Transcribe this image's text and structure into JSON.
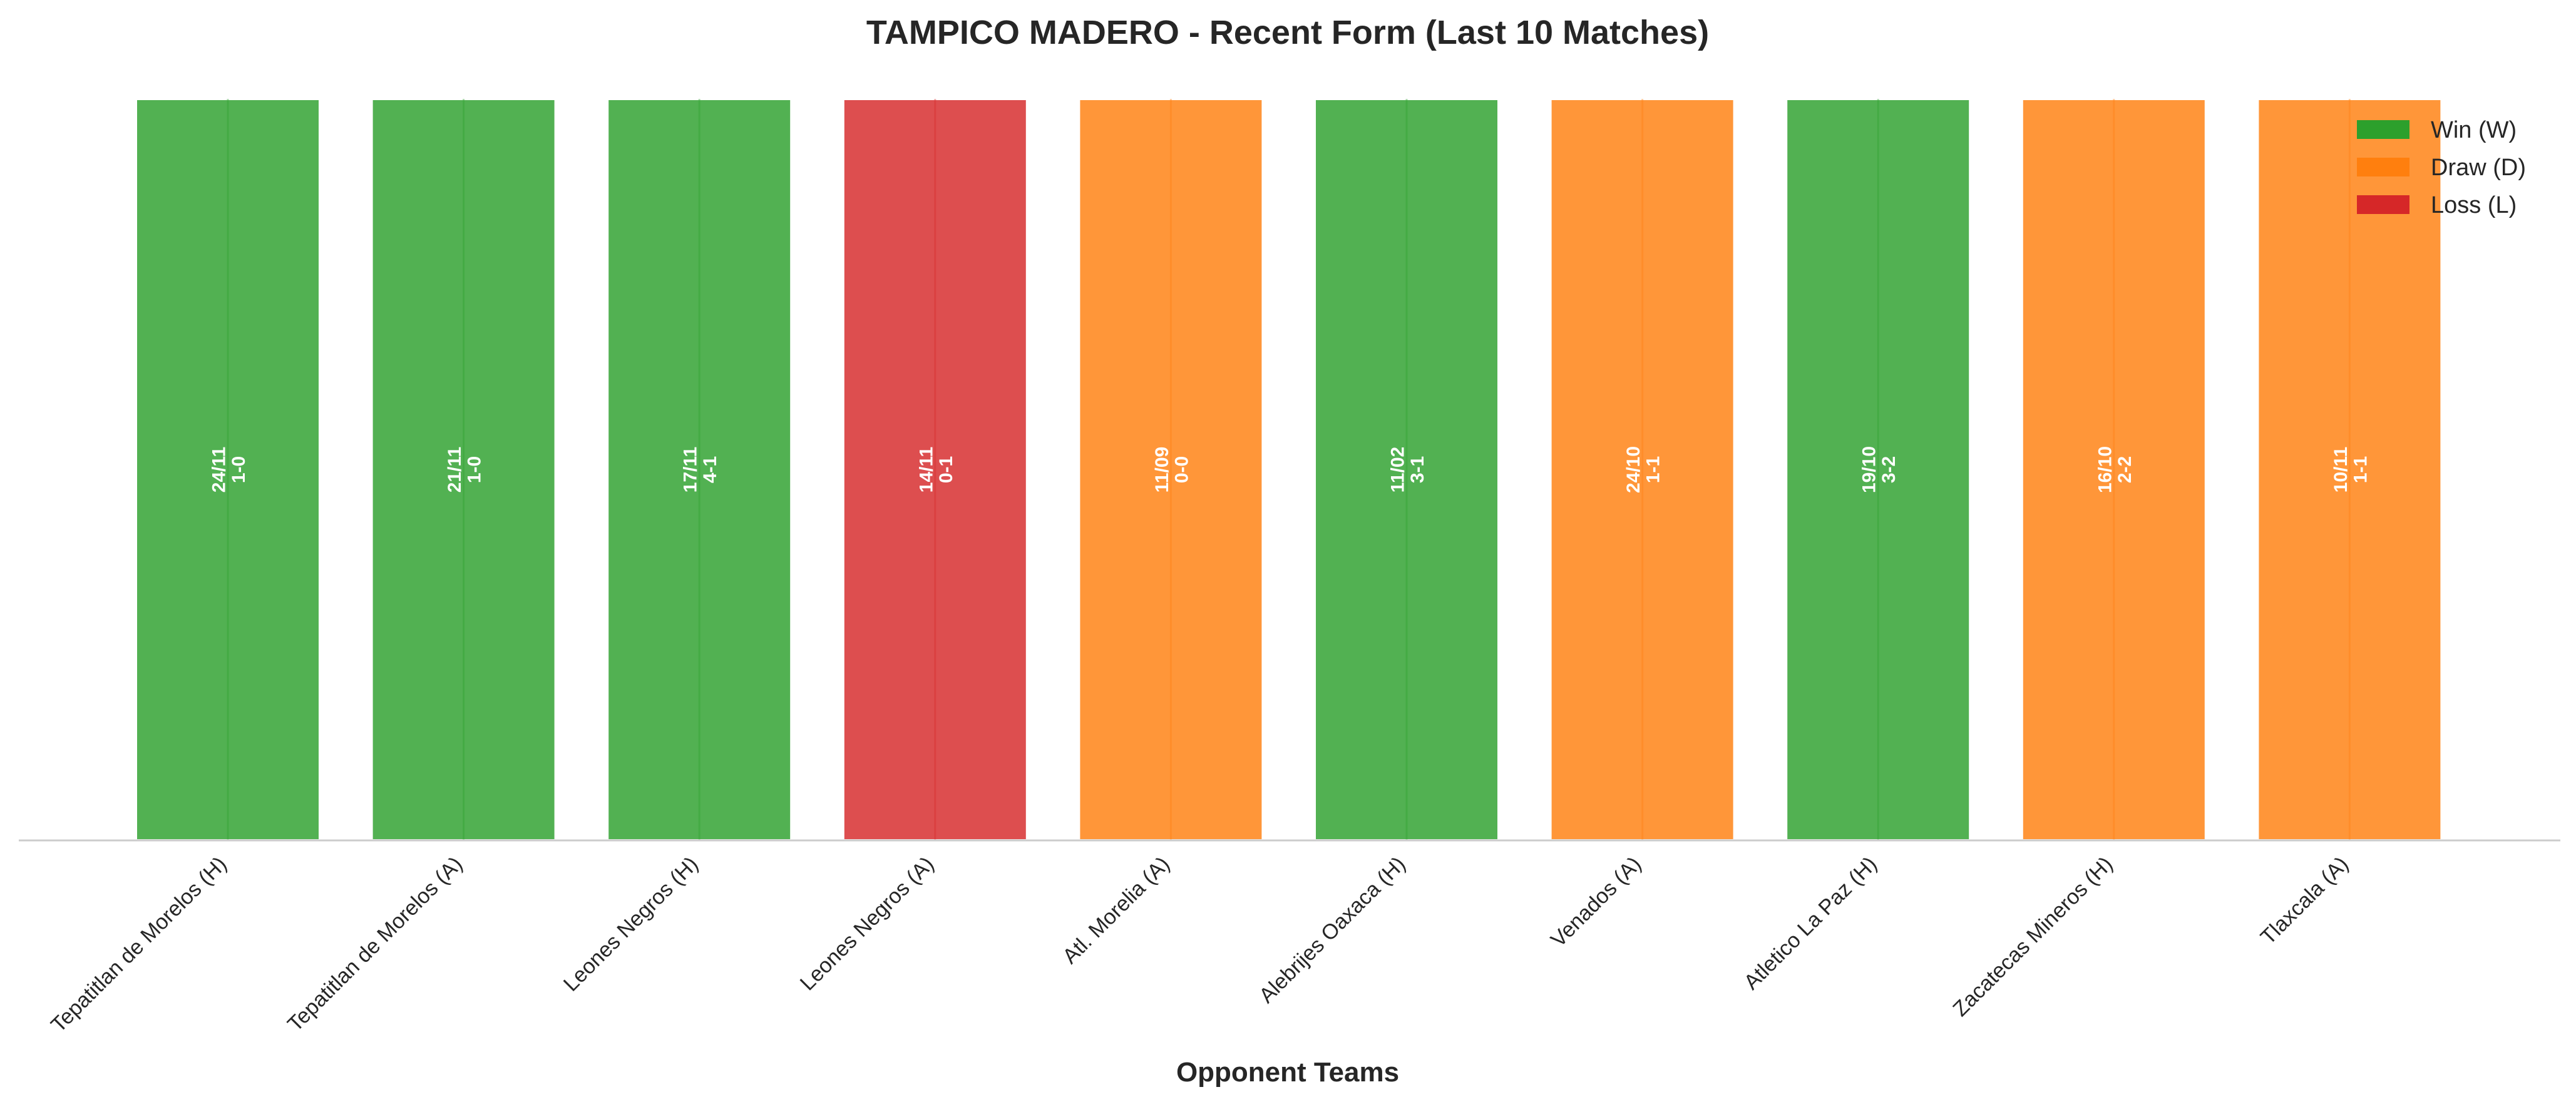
{
  "chart_data": {
    "type": "bar",
    "title": "TAMPICO MADERO - Recent Form (Last 10 Matches)",
    "xlabel": "Opponent Teams",
    "ylabel": "",
    "categories": [
      "Tepatitlan de Morelos (H)",
      "Tepatitlan de Morelos (A)",
      "Leones Negros (H)",
      "Leones Negros (A)",
      "Atl. Morelia (A)",
      "Alebrijes Oaxaca (H)",
      "Venados (A)",
      "Atletico La Paz (H)",
      "Zacatecas Mineros (H)",
      "Tlaxcala (A)"
    ],
    "values": [
      1,
      1,
      1,
      1,
      1,
      1,
      1,
      1,
      1,
      1
    ],
    "results": [
      "W",
      "W",
      "W",
      "L",
      "D",
      "W",
      "D",
      "W",
      "D",
      "D"
    ],
    "dates": [
      "24/11",
      "21/11",
      "17/11",
      "14/11",
      "11/09",
      "11/02",
      "24/10",
      "19/10",
      "16/10",
      "10/11"
    ],
    "scores": [
      "1-0",
      "1-0",
      "4-1",
      "0-1",
      "0-0",
      "3-1",
      "1-1",
      "3-2",
      "2-2",
      "1-1"
    ],
    "ylim": [
      0,
      1
    ],
    "grid": false,
    "legend": {
      "placement": "top-right",
      "entries": [
        {
          "key": "W",
          "label": "Win (W)",
          "color": "#2ca02c"
        },
        {
          "key": "D",
          "label": "Draw (D)",
          "color": "#ff7f0e"
        },
        {
          "key": "L",
          "label": "Loss (L)",
          "color": "#d62728"
        }
      ]
    }
  }
}
